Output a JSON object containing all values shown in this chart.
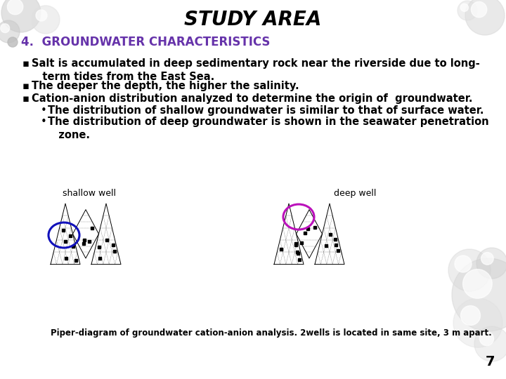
{
  "title": "STUDY AREA",
  "title_fontsize": 20,
  "title_color": "#000000",
  "section_num": "4.",
  "section_title": "GROUNDWATER CHARACTERISTICS",
  "section_color": "#6633aa",
  "section_fontsize": 12,
  "bullet_char": "▪",
  "bullet1": "Salt is accumulated in deep sedimentary rock near the riverside due to long-\n   term tides from the East Sea.",
  "bullet2": "The deeper the depth, the higher the salinity.",
  "bullet3": "Cation-anion distribution analyzed to determine the origin of  groundwater.",
  "sub1": "The distribution of shallow groundwater is similar to that of surface water.",
  "sub2": "The distribution of deep groundwater is shown in the seawater penetration\n   zone.",
  "bullet_fontsize": 10.5,
  "label_shallow": "shallow well",
  "label_deep": "deep well",
  "caption": "Piper-diagram of groundwater cation-anion analysis. 2wells is located in same site, 3 m apart.",
  "caption_fontsize": 8.5,
  "page_num": "7",
  "bg_color": "#ffffff",
  "circle_shallow_color": "#1111bb",
  "circle_deep_color": "#bb11bb"
}
